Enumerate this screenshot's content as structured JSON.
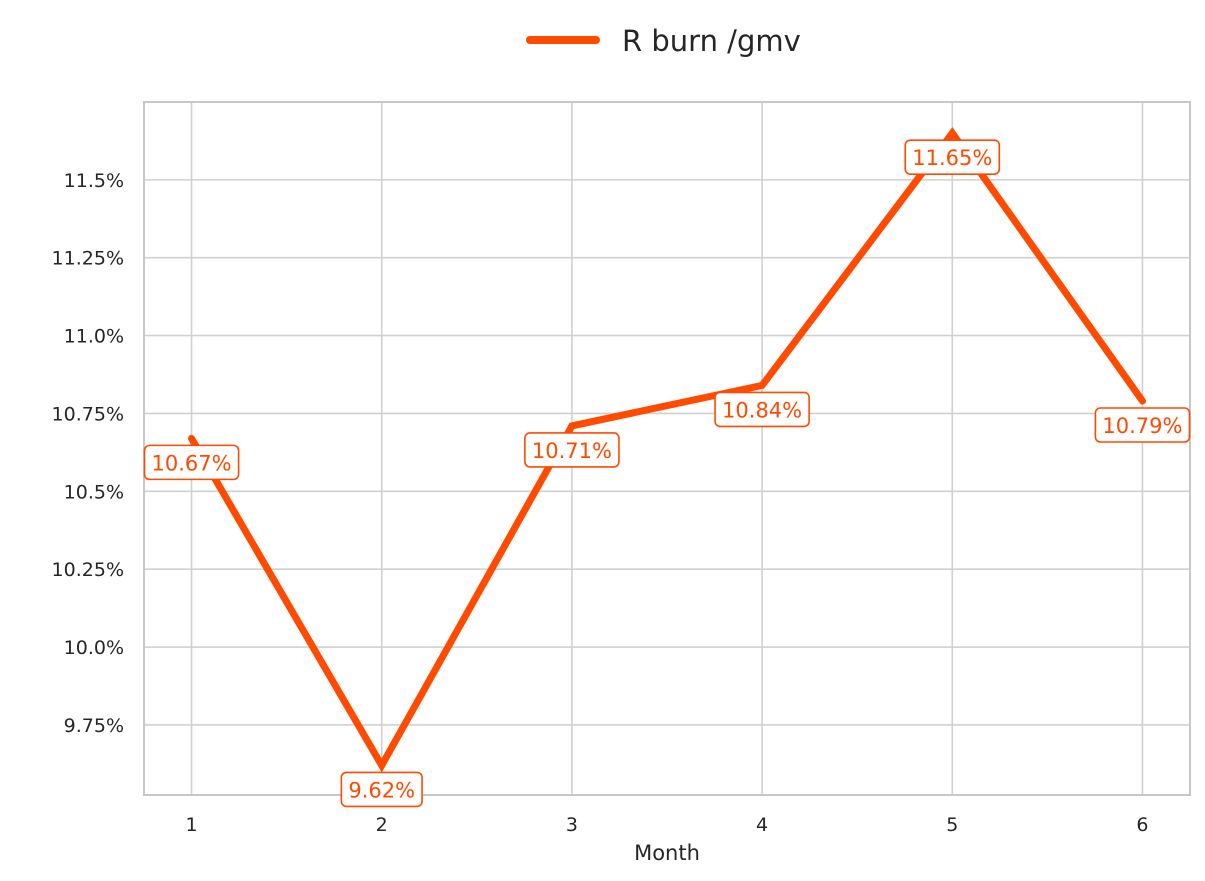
{
  "chart_data": {
    "type": "line",
    "x": [
      1,
      2,
      3,
      4,
      5,
      6
    ],
    "series": [
      {
        "name": "R burn /gmv",
        "values": [
          10.67,
          9.62,
          10.71,
          10.84,
          11.65,
          10.79
        ],
        "labels": [
          "10.67%",
          "9.62%",
          "10.71%",
          "10.84%",
          "11.65%",
          "10.79%"
        ],
        "color": "#FF4A00"
      }
    ],
    "xlabel": "Month",
    "ylabel": "",
    "x_ticks": [
      "1",
      "2",
      "3",
      "4",
      "5",
      "6"
    ],
    "y_ticks": [
      {
        "value": 9.75,
        "label": "9.75%"
      },
      {
        "value": 10.0,
        "label": "10.0%"
      },
      {
        "value": 10.25,
        "label": "10.25%"
      },
      {
        "value": 10.5,
        "label": "10.5%"
      },
      {
        "value": 10.75,
        "label": "10.75%"
      },
      {
        "value": 11.0,
        "label": "11.0%"
      },
      {
        "value": 11.25,
        "label": "11.25%"
      },
      {
        "value": 11.5,
        "label": "11.5%"
      }
    ],
    "xlim": [
      0.75,
      6.25
    ],
    "ylim": [
      9.525,
      11.75
    ],
    "grid": true,
    "legend": "top-center"
  }
}
